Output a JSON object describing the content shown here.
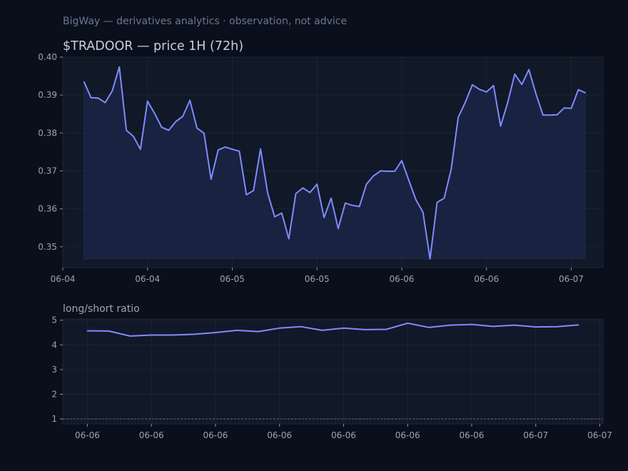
{
  "header": {
    "subtitle": "BigWay — derivatives analytics · observation, not advice"
  },
  "colors": {
    "background": "#0a0f1c",
    "plot_bg": "#111827",
    "line": "#7f8bff",
    "text": "#c9cfdc",
    "muted": "#9aa3b5",
    "grid": "#1f2738",
    "ref_line": "#6b7280"
  },
  "chart_data": [
    {
      "type": "area",
      "title": "$TRADOOR — price 1H (72h)",
      "xlabel": "",
      "ylabel": "",
      "ylim": [
        0.3445,
        0.4
      ],
      "yticks": [
        0.35,
        0.36,
        0.37,
        0.38,
        0.39,
        0.4
      ],
      "ytick_labels": [
        "0.35",
        "0.36",
        "0.37",
        "0.38",
        "0.39",
        "0.40"
      ],
      "xlim": [
        -3,
        73.5
      ],
      "xticks": [
        -3,
        9,
        21,
        33,
        45,
        57,
        69
      ],
      "xtick_labels": [
        "06-04",
        "06-04",
        "06-05",
        "06-05",
        "06-06",
        "06-06",
        "06-07"
      ],
      "grid": true,
      "x": [
        0,
        1,
        2,
        3,
        4,
        5,
        6,
        7,
        8,
        9,
        10,
        11,
        12,
        13,
        14,
        15,
        16,
        17,
        18,
        19,
        20,
        21,
        22,
        23,
        24,
        25,
        26,
        27,
        28,
        29,
        30,
        31,
        32,
        33,
        34,
        35,
        36,
        37,
        38,
        39,
        40,
        41,
        42,
        43,
        44,
        45,
        46,
        47,
        48,
        49,
        50,
        51,
        52,
        53,
        54,
        55,
        56,
        57,
        58,
        59,
        60,
        61,
        62,
        63,
        64,
        65,
        66,
        67,
        68,
        69,
        70,
        71
      ],
      "values": [
        0.3935,
        0.3893,
        0.3892,
        0.388,
        0.3911,
        0.3974,
        0.3807,
        0.3791,
        0.3757,
        0.3884,
        0.3852,
        0.3815,
        0.3807,
        0.383,
        0.3844,
        0.3886,
        0.3813,
        0.3799,
        0.3678,
        0.3755,
        0.3763,
        0.3757,
        0.3752,
        0.3637,
        0.3648,
        0.3758,
        0.3642,
        0.3579,
        0.3589,
        0.3521,
        0.364,
        0.3655,
        0.3643,
        0.3665,
        0.3577,
        0.3628,
        0.3548,
        0.3615,
        0.3609,
        0.3606,
        0.3665,
        0.3687,
        0.37,
        0.3699,
        0.3699,
        0.3727,
        0.3675,
        0.3624,
        0.3591,
        0.3468,
        0.3617,
        0.3628,
        0.3704,
        0.3841,
        0.3881,
        0.3927,
        0.3915,
        0.3908,
        0.3925,
        0.3818,
        0.388,
        0.3955,
        0.3928,
        0.3967,
        0.3903,
        0.3847,
        0.3847,
        0.3848,
        0.3866,
        0.3865,
        0.3914,
        0.3906
      ]
    },
    {
      "type": "line",
      "title": "long/short ratio",
      "xlabel": "",
      "ylabel": "",
      "ylim": [
        0.8,
        5.05
      ],
      "yticks": [
        1,
        2,
        3,
        4,
        5
      ],
      "ytick_labels": [
        "1",
        "2",
        "3",
        "4",
        "5"
      ],
      "xlim": [
        -1.15,
        24.15
      ],
      "xticks": [
        0,
        3,
        6,
        9,
        12,
        15,
        18,
        21,
        24
      ],
      "xtick_labels": [
        "06-06",
        "06-06",
        "06-06",
        "06-06",
        "06-06",
        "06-06",
        "06-06",
        "06-07",
        "06-07"
      ],
      "reference_line": 1,
      "grid": true,
      "x": [
        0,
        1,
        2,
        3,
        4,
        5,
        6,
        7,
        8,
        9,
        10,
        11,
        12,
        13,
        14,
        15,
        16,
        17,
        18,
        19,
        20,
        21,
        22,
        23
      ],
      "values": [
        4.57,
        4.56,
        4.36,
        4.4,
        4.4,
        4.43,
        4.5,
        4.59,
        4.54,
        4.68,
        4.74,
        4.59,
        4.68,
        4.62,
        4.63,
        4.88,
        4.71,
        4.8,
        4.83,
        4.75,
        4.8,
        4.73,
        4.74,
        4.81
      ]
    }
  ]
}
